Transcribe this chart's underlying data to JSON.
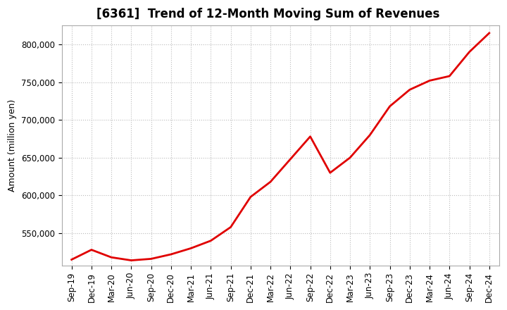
{
  "title": "[6361]  Trend of 12-Month Moving Sum of Revenues",
  "ylabel": "Amount (million yen)",
  "background_color": "#ffffff",
  "plot_bg_color": "#ffffff",
  "line_color": "#e00000",
  "x_labels": [
    "Sep-19",
    "Dec-19",
    "Mar-20",
    "Jun-20",
    "Sep-20",
    "Dec-20",
    "Mar-21",
    "Jun-21",
    "Sep-21",
    "Dec-21",
    "Mar-22",
    "Jun-22",
    "Sep-22",
    "Dec-22",
    "Mar-23",
    "Jun-23",
    "Sep-23",
    "Dec-23",
    "Mar-24",
    "Jun-24",
    "Sep-24",
    "Dec-24"
  ],
  "y_values": [
    515000,
    528000,
    518000,
    514000,
    516000,
    522000,
    530000,
    540000,
    558000,
    598000,
    618000,
    648000,
    678000,
    630000,
    650000,
    680000,
    718000,
    740000,
    752000,
    758000,
    790000,
    815000
  ],
  "ylim": [
    507000,
    825000
  ],
  "yticks": [
    550000,
    600000,
    650000,
    700000,
    750000,
    800000
  ],
  "ytick_labels": [
    "550,000",
    "600,000",
    "650,000",
    "700,000",
    "750,000",
    "800,000"
  ],
  "grid_color": "#bbbbbb",
  "title_fontsize": 12,
  "axis_fontsize": 9,
  "tick_fontsize": 8.5,
  "line_width": 2.0
}
